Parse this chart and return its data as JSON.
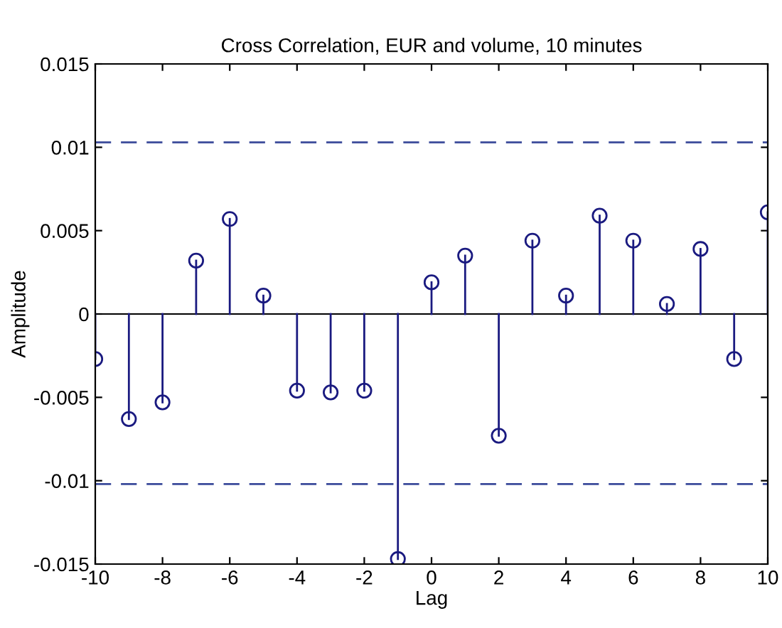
{
  "chart_data": {
    "type": "lollipop",
    "title": "Cross Correlation, EUR and volume, 10 minutes",
    "xlabel": "Lag",
    "ylabel": "Amplitude",
    "x": [
      -10,
      -9,
      -8,
      -7,
      -6,
      -5,
      -4,
      -3,
      -2,
      -1,
      0,
      1,
      2,
      3,
      4,
      5,
      6,
      7,
      8,
      9,
      10
    ],
    "series": [
      {
        "color": "#1a1a80",
        "values": [
          -0.0027,
          -0.0063,
          -0.0053,
          0.0032,
          0.0057,
          0.0011,
          -0.0046,
          -0.0047,
          -0.0046,
          -0.0147,
          0.0019,
          0.0035,
          -0.0073,
          0.0044,
          0.0011,
          0.0059,
          0.0044,
          0.0006,
          0.0039,
          -0.0027,
          0.0061
        ]
      }
    ],
    "marker": "circle",
    "xlim": [
      -10,
      10
    ],
    "ylim": [
      -0.015,
      0.015
    ],
    "xticks": [
      -10,
      -8,
      -6,
      -4,
      -2,
      0,
      2,
      4,
      6,
      8,
      10
    ],
    "yticks": [
      -0.015,
      -0.01,
      -0.005,
      0,
      0.005,
      0.01,
      0.015
    ],
    "ref_lines": [
      {
        "axis": "y",
        "value": 0.0103,
        "color": "#3a4a9a",
        "line_style": "dashed"
      },
      {
        "axis": "y",
        "value": -0.0102,
        "color": "#3a4a9a",
        "line_style": "dashed"
      }
    ]
  }
}
